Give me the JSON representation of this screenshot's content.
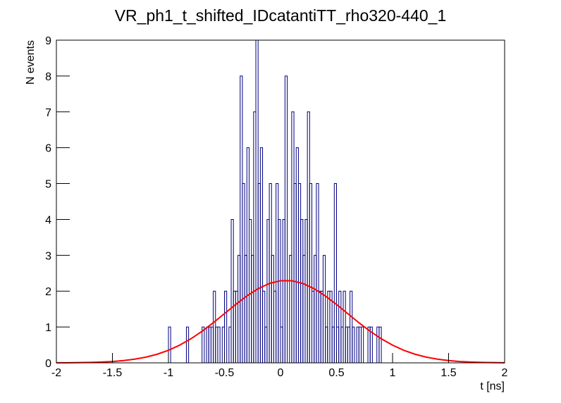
{
  "chart_data": {
    "type": "histogram",
    "title": "VR_ph1_t_shifted_IDcatantiTT_rho320-440_1",
    "xlabel": "t [ns]",
    "ylabel": "N events",
    "bins": [
      -1,
      -0.98,
      -0.96,
      -0.94,
      -0.92,
      -0.9,
      -0.88,
      -0.86,
      -0.84,
      -0.82,
      -0.8,
      -0.78,
      -0.76,
      -0.74,
      -0.72,
      -0.7,
      -0.68,
      -0.66,
      -0.64,
      -0.62,
      -0.6,
      -0.58,
      -0.56,
      -0.54,
      -0.52,
      -0.5,
      -0.48,
      -0.46,
      -0.44,
      -0.42,
      -0.4,
      -0.38,
      -0.36,
      -0.34,
      -0.32,
      -0.3,
      -0.28,
      -0.26,
      -0.24,
      -0.22,
      -0.2,
      -0.18,
      -0.16,
      -0.14,
      -0.12,
      -0.1,
      -0.08,
      -0.06,
      -0.04,
      -0.02,
      0,
      0.02,
      0.04,
      0.06,
      0.08,
      0.1,
      0.12,
      0.14,
      0.16,
      0.18,
      0.2,
      0.22,
      0.24,
      0.26,
      0.28,
      0.3,
      0.32,
      0.34,
      0.36,
      0.38,
      0.4,
      0.42,
      0.44,
      0.46,
      0.48,
      0.5,
      0.52,
      0.54,
      0.56,
      0.58,
      0.6,
      0.62,
      0.64,
      0.66,
      0.68,
      0.7,
      0.72,
      0.74,
      0.76,
      0.78,
      0.8,
      0.82,
      0.84,
      0.86,
      0.88,
      0.9,
      0.92,
      0.94,
      0.96,
      0.98,
      1
    ],
    "counts": [
      1,
      0,
      0,
      0,
      0,
      0,
      0,
      0,
      1,
      0,
      0,
      0,
      0,
      0,
      0,
      1,
      0,
      1,
      1,
      1,
      2,
      1,
      1,
      0,
      1,
      2,
      0,
      1,
      4,
      2,
      2,
      3,
      8,
      5,
      3,
      6,
      4,
      3,
      7,
      9,
      5,
      6,
      2,
      1,
      4,
      5,
      3,
      2,
      5,
      4,
      1,
      4,
      8,
      0,
      3,
      7,
      5,
      6,
      5,
      4,
      3,
      4,
      7,
      5,
      2,
      3,
      5,
      2,
      2,
      3,
      1,
      2,
      2,
      1,
      5,
      1,
      2,
      1,
      2,
      1,
      1,
      2,
      1,
      0,
      1,
      1,
      1,
      0,
      0,
      1,
      1,
      0,
      0,
      1,
      1,
      0,
      0,
      0,
      0,
      0
    ],
    "color": "#000080",
    "fit": {
      "color": "#ff0000",
      "x": [
        -2,
        -1.9,
        -1.8,
        -1.7,
        -1.6,
        -1.5,
        -1.4,
        -1.3,
        -1.2,
        -1.1,
        -1,
        -0.9,
        -0.8,
        -0.7,
        -0.6,
        -0.5,
        -0.4,
        -0.3,
        -0.2,
        -0.1,
        0,
        0.1,
        0.2,
        0.3,
        0.4,
        0.5,
        0.6,
        0.7,
        0.8,
        0.9,
        1,
        1.1,
        1.2,
        1.3,
        1.4,
        1.5,
        1.6,
        1.7,
        1.8,
        1.9,
        2
      ],
      "values": [
        0.002,
        0.003,
        0.007,
        0.012,
        0.022,
        0.038,
        0.064,
        0.103,
        0.16,
        0.241,
        0.351,
        0.493,
        0.67,
        0.881,
        1.118,
        1.373,
        1.628,
        1.866,
        2.067,
        2.213,
        2.29,
        2.29,
        2.213,
        2.067,
        1.866,
        1.628,
        1.373,
        1.118,
        0.881,
        0.67,
        0.493,
        0.351,
        0.241,
        0.16,
        0.103,
        0.064,
        0.038,
        0.022,
        0.012,
        0.007,
        0.003
      ]
    },
    "xlim": [
      -2,
      2
    ],
    "xticks": [
      -2,
      -1.5,
      -1,
      -0.5,
      0,
      0.5,
      1,
      1.5,
      2
    ],
    "ylim": [
      0,
      9
    ],
    "yticks": [
      0,
      1,
      2,
      3,
      4,
      5,
      6,
      7,
      8,
      9
    ]
  }
}
